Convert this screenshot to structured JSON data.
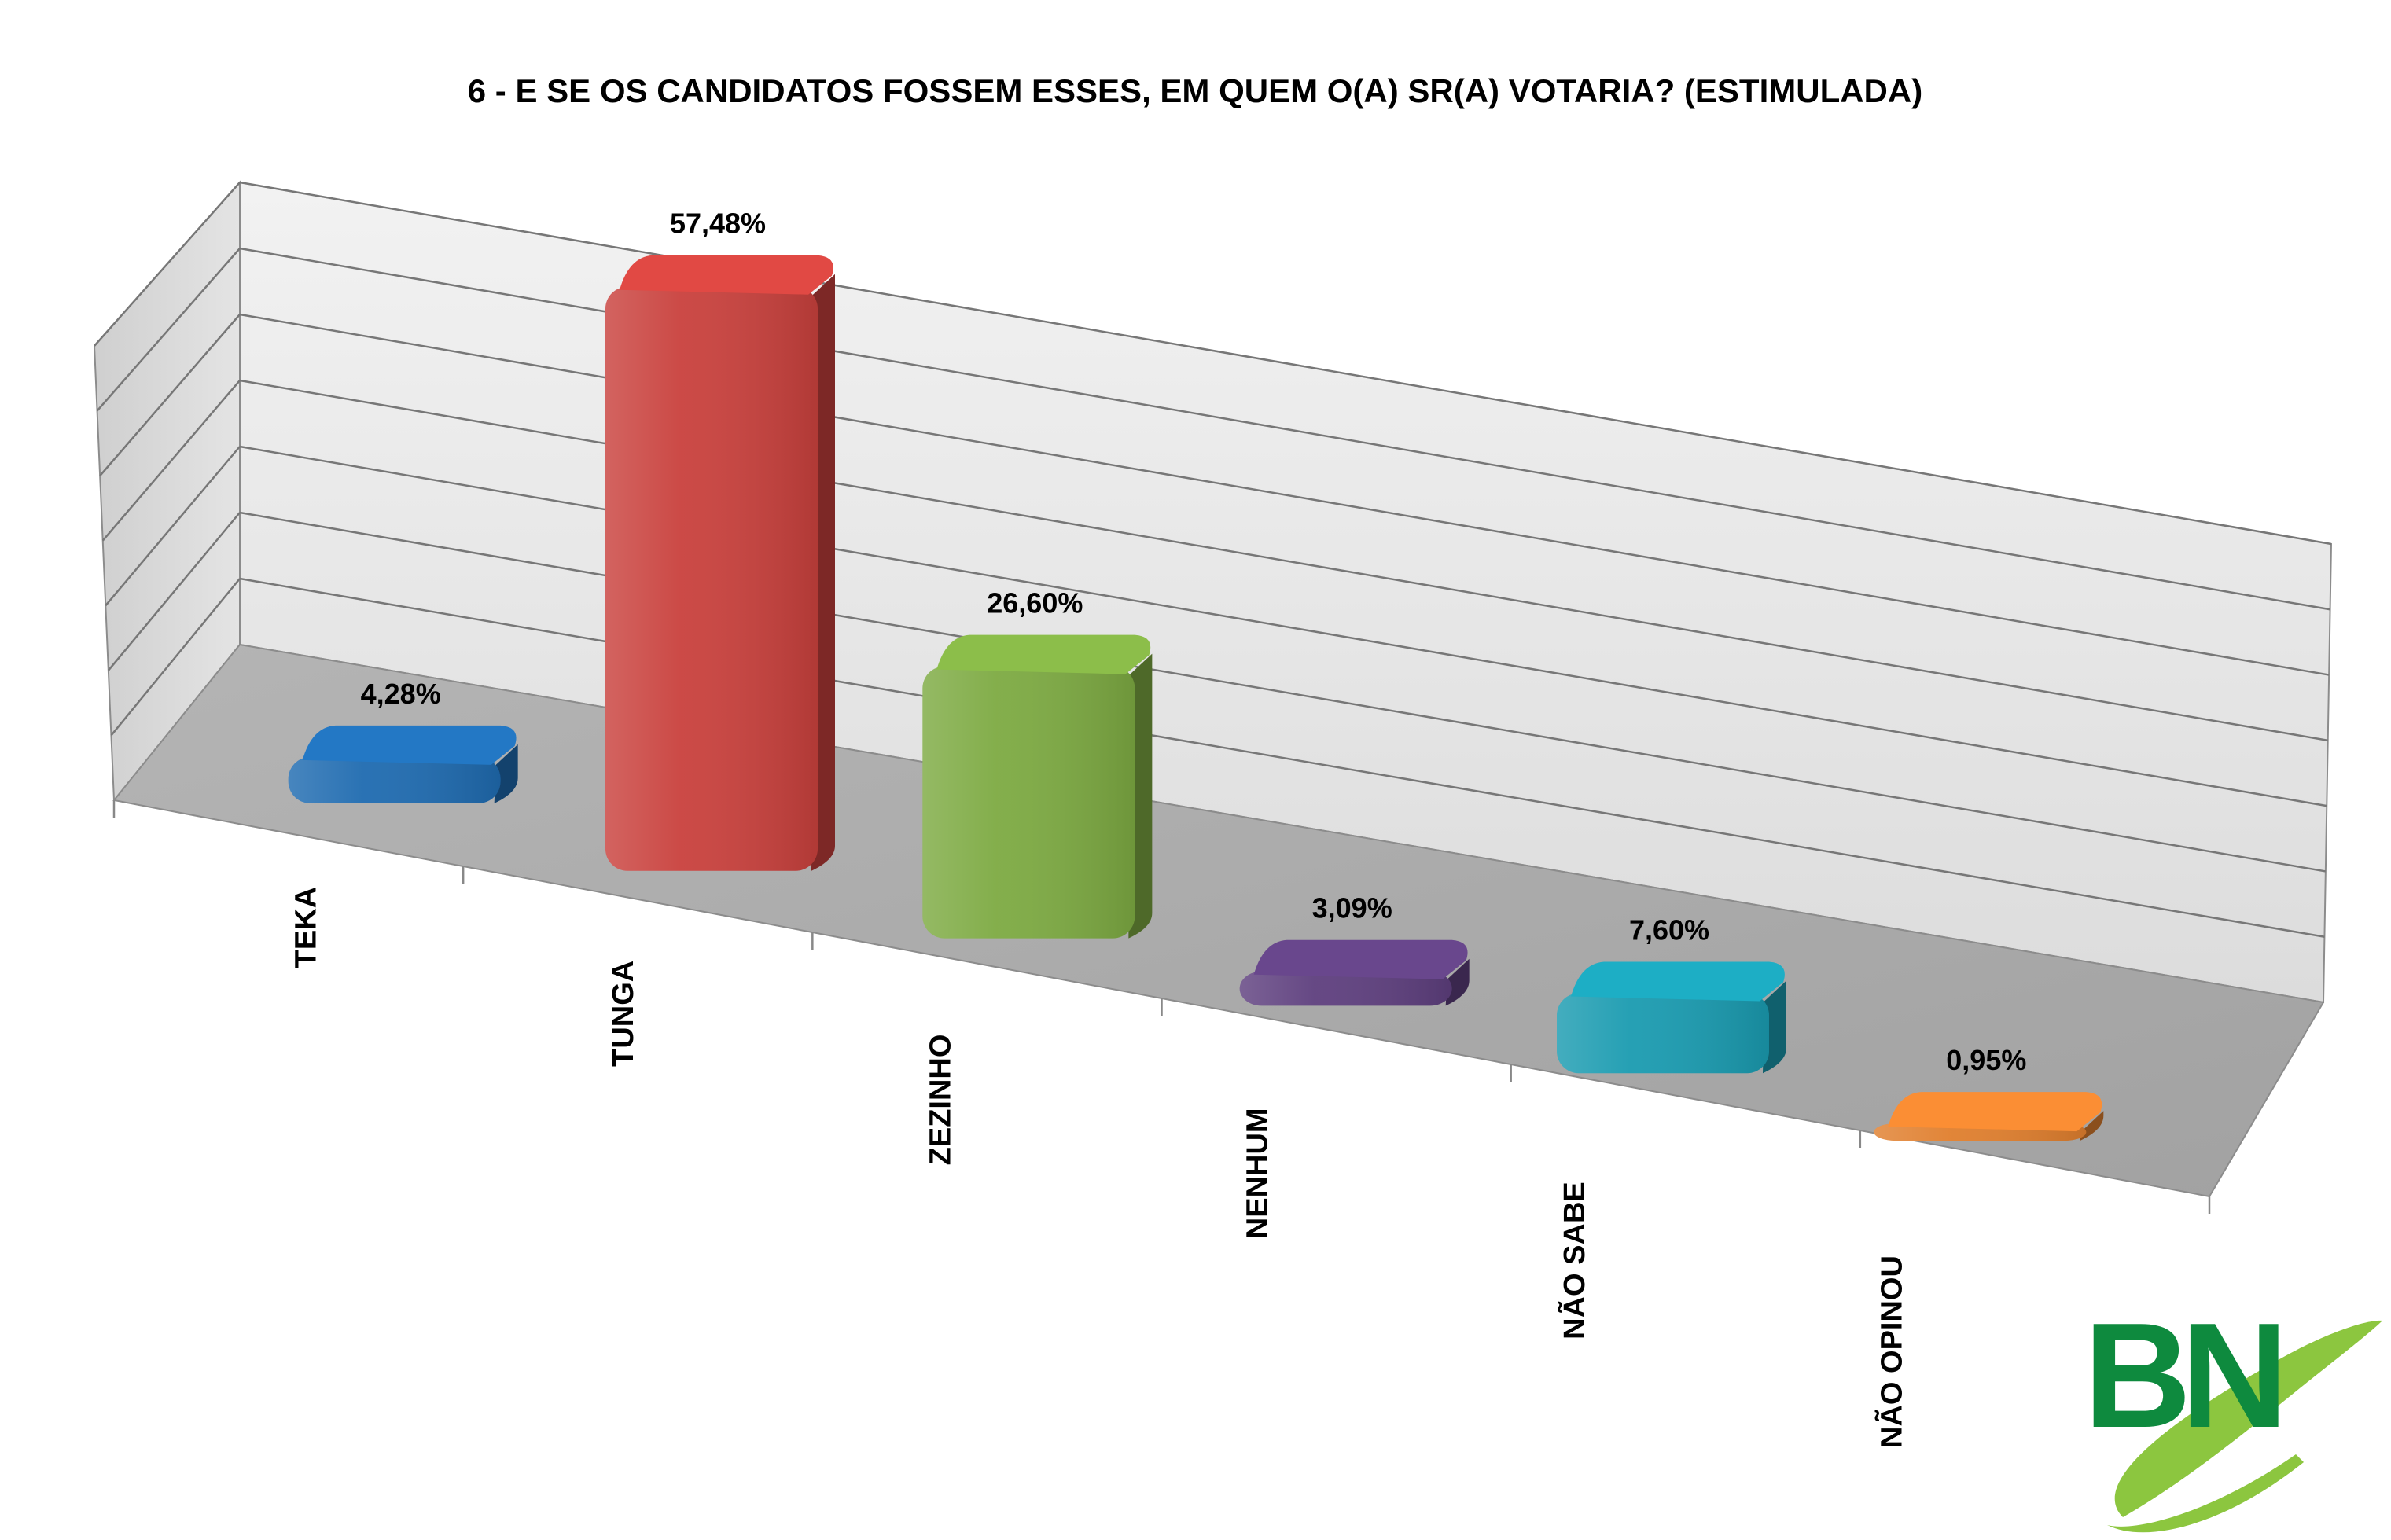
{
  "chart_data": {
    "type": "bar",
    "title": "6 - E SE OS CANDIDATOS FOSSEM ESSES, EM QUEM O(A) SR(A) VOTARIA? (ESTIMULADA)",
    "categories": [
      "TEKA",
      "TUNGA",
      "ZEZINHO",
      "NENHUM",
      "NÃO SABE",
      "NÃO OPINOU"
    ],
    "values": [
      4.28,
      57.48,
      26.6,
      3.09,
      7.6,
      0.95
    ],
    "data_labels": [
      "4,28%",
      "57,48%",
      "26,60%",
      "3,09%",
      "7,60%",
      "0,95%"
    ],
    "colors": [
      "#1F6BB0",
      "#C9413D",
      "#7DAA42",
      "#5E3F7E",
      "#1A9BB0",
      "#E07F2E"
    ],
    "ylim": [
      0,
      70
    ],
    "grid": true,
    "legend": "none",
    "style": "3d-perspective"
  },
  "logo": {
    "text": "BN",
    "color": "#0E8A3E",
    "swoosh_color": "#8CC63F"
  }
}
